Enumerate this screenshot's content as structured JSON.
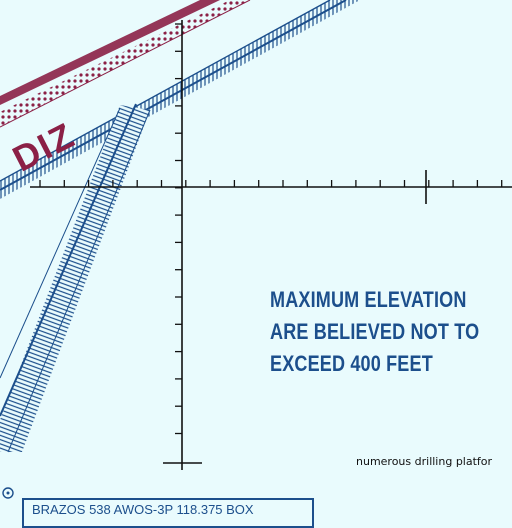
{
  "labels": {
    "airspace_code": "DIZ",
    "elevation_notice": {
      "line1": "MAXIMUM ELEVATION",
      "line2": "ARE BELIEVED NOT TO",
      "line3": "EXCEED 400 FEET"
    },
    "platforms_note": "numerous drilling platfor",
    "station_box": "BRAZOS 538  AWOS-3P 118.375  BOX"
  },
  "colors": {
    "background": "#e9fbfd",
    "route_blue": "#1c4f8c",
    "boundary_maroon": "#8b2046",
    "grid_black": "#111111"
  }
}
